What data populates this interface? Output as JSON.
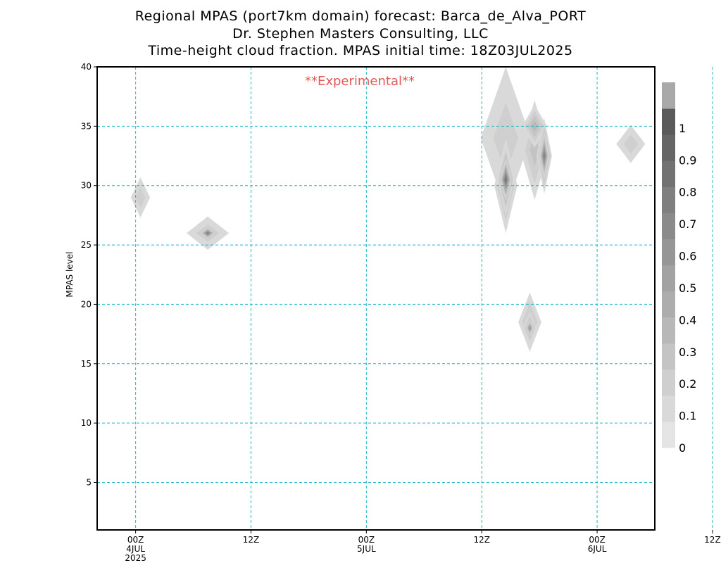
{
  "header": {
    "line1": "Regional MPAS (port7km domain) forecast: Barca_de_Alva_PORT",
    "line2": "Dr. Stephen Masters Consulting, LLC",
    "line3": "Time-height cloud fraction.   MPAS initial time: 18Z03JUL2025"
  },
  "annotation": "**Experimental**",
  "colors": {
    "grid": "#20b8c8",
    "annotation": "#e05a5a",
    "frame": "#000000"
  },
  "chart_data": {
    "type": "heatmap",
    "ylabel": "MPAS level",
    "xlabel": "",
    "ylim": [
      1,
      40
    ],
    "xlim_hours_from_00Z4JUL": [
      -4,
      54
    ],
    "y_ticks": [
      5,
      10,
      15,
      20,
      25,
      30,
      35,
      40
    ],
    "x_ticks": [
      {
        "hour": 0,
        "lines": [
          "00Z",
          "4JUL",
          "2025"
        ]
      },
      {
        "hour": 12,
        "lines": [
          "12Z"
        ]
      },
      {
        "hour": 24,
        "lines": [
          "00Z",
          "5JUL"
        ]
      },
      {
        "hour": 36,
        "lines": [
          "12Z"
        ]
      },
      {
        "hour": 48,
        "lines": [
          "00Z",
          "6JUL"
        ]
      },
      {
        "hour": 60,
        "lines": [
          "12Z"
        ]
      }
    ],
    "grid": true,
    "colorbar": {
      "labels": [
        "0",
        "0.1",
        "0.2",
        "0.3",
        "0.4",
        "0.5",
        "0.6",
        "0.7",
        "0.8",
        "0.9",
        "1"
      ],
      "colors": [
        "#e4e4e4",
        "#d9d9d9",
        "#cfcfcf",
        "#c4c4c4",
        "#b8b8b8",
        "#adadad",
        "#a2a2a2",
        "#969696",
        "#8a8a8a",
        "#7f7f7f",
        "#727272",
        "#666666",
        "#5a5a5a",
        "#a8a8a8"
      ]
    },
    "cloud_features": [
      {
        "hour": 0.5,
        "level": 29,
        "dh": 1.0,
        "dl": 1.7,
        "max": 0.1
      },
      {
        "hour": 7.5,
        "level": 26,
        "dh": 2.2,
        "dl": 1.4,
        "max": 0.1
      },
      {
        "hour": 7.5,
        "level": 26,
        "dh": 1.5,
        "dl": 0.9,
        "max": 0.4
      },
      {
        "hour": 7.5,
        "level": 26,
        "dh": 0.8,
        "dl": 0.5,
        "max": 0.8
      },
      {
        "hour": 38.5,
        "level": 34,
        "dh": 2.6,
        "dl": 6.0,
        "max": 0.1
      },
      {
        "hour": 38.5,
        "level": 30,
        "dh": 1.2,
        "dl": 4.0,
        "max": 0.3
      },
      {
        "hour": 38.5,
        "level": 30.5,
        "dh": 0.9,
        "dl": 3.0,
        "max": 0.6
      },
      {
        "hour": 38.5,
        "level": 30.5,
        "dh": 0.6,
        "dl": 1.8,
        "max": 0.9
      },
      {
        "hour": 41.5,
        "level": 33,
        "dh": 1.5,
        "dl": 4.2,
        "max": 0.2
      },
      {
        "hour": 41.5,
        "level": 35,
        "dh": 1.3,
        "dl": 1.8,
        "max": 0.3
      },
      {
        "hour": 42.5,
        "level": 32.5,
        "dh": 0.8,
        "dl": 3.2,
        "max": 0.5
      },
      {
        "hour": 42.5,
        "level": 32.5,
        "dh": 0.5,
        "dl": 2.0,
        "max": 0.8
      },
      {
        "hour": 51.5,
        "level": 33.5,
        "dh": 1.5,
        "dl": 1.6,
        "max": 0.1
      },
      {
        "hour": 41.0,
        "level": 18.5,
        "dh": 1.2,
        "dl": 2.5,
        "max": 0.2
      },
      {
        "hour": 41.0,
        "level": 18,
        "dh": 0.7,
        "dl": 1.4,
        "max": 0.4
      },
      {
        "hour": 41.0,
        "level": 18,
        "dh": 0.4,
        "dl": 0.7,
        "max": 0.6
      }
    ]
  }
}
